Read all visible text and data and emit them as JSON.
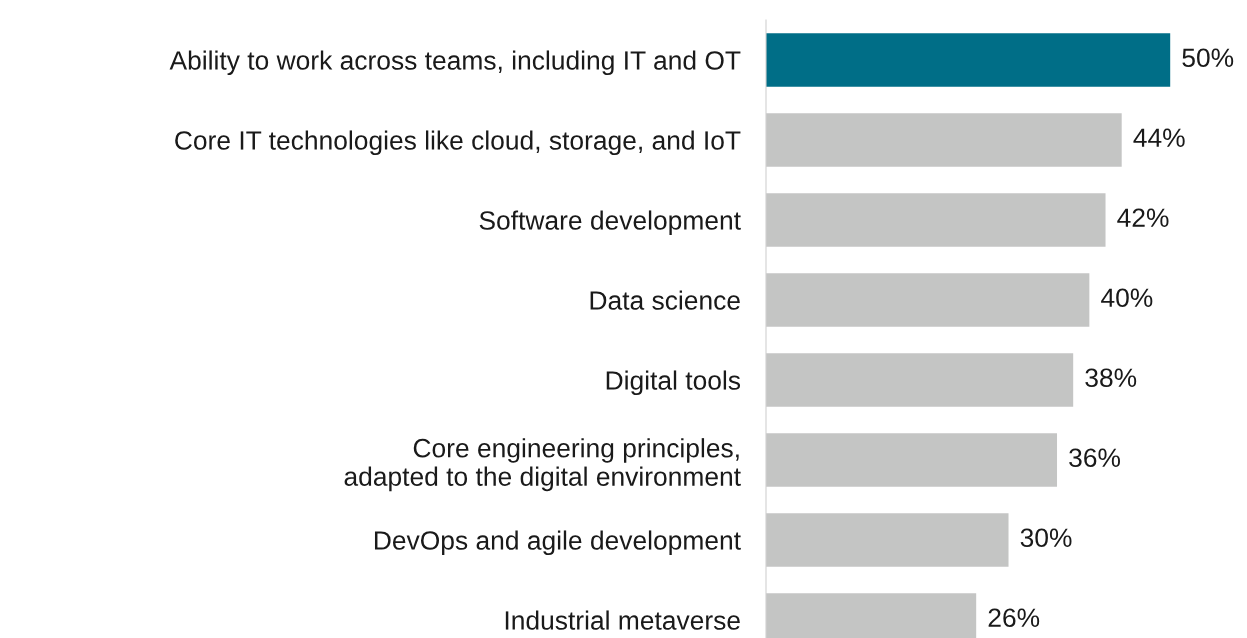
{
  "chart_data": {
    "type": "bar",
    "orientation": "horizontal",
    "categories": [
      "Ability to work across teams, including IT and OT",
      "Core IT technologies like cloud, storage, and IoT",
      "Software development",
      "Data science",
      "Digital tools",
      "Core engineering principles,\nadapted to the digital environment",
      "DevOps and agile development",
      "Industrial metaverse"
    ],
    "values": [
      50,
      44,
      42,
      40,
      38,
      36,
      30,
      26
    ],
    "colors": [
      "#006e87",
      "#c4c5c4",
      "#c4c5c4",
      "#c4c5c4",
      "#c4c5c4",
      "#c4c5c4",
      "#c4c5c4",
      "#c4c5c4"
    ],
    "value_labels": [
      "50%",
      "44%",
      "42%",
      "40%",
      "38%",
      "36%",
      "30%",
      "26%"
    ],
    "tick_labels": "y",
    "grid": false,
    "legend": false
  }
}
